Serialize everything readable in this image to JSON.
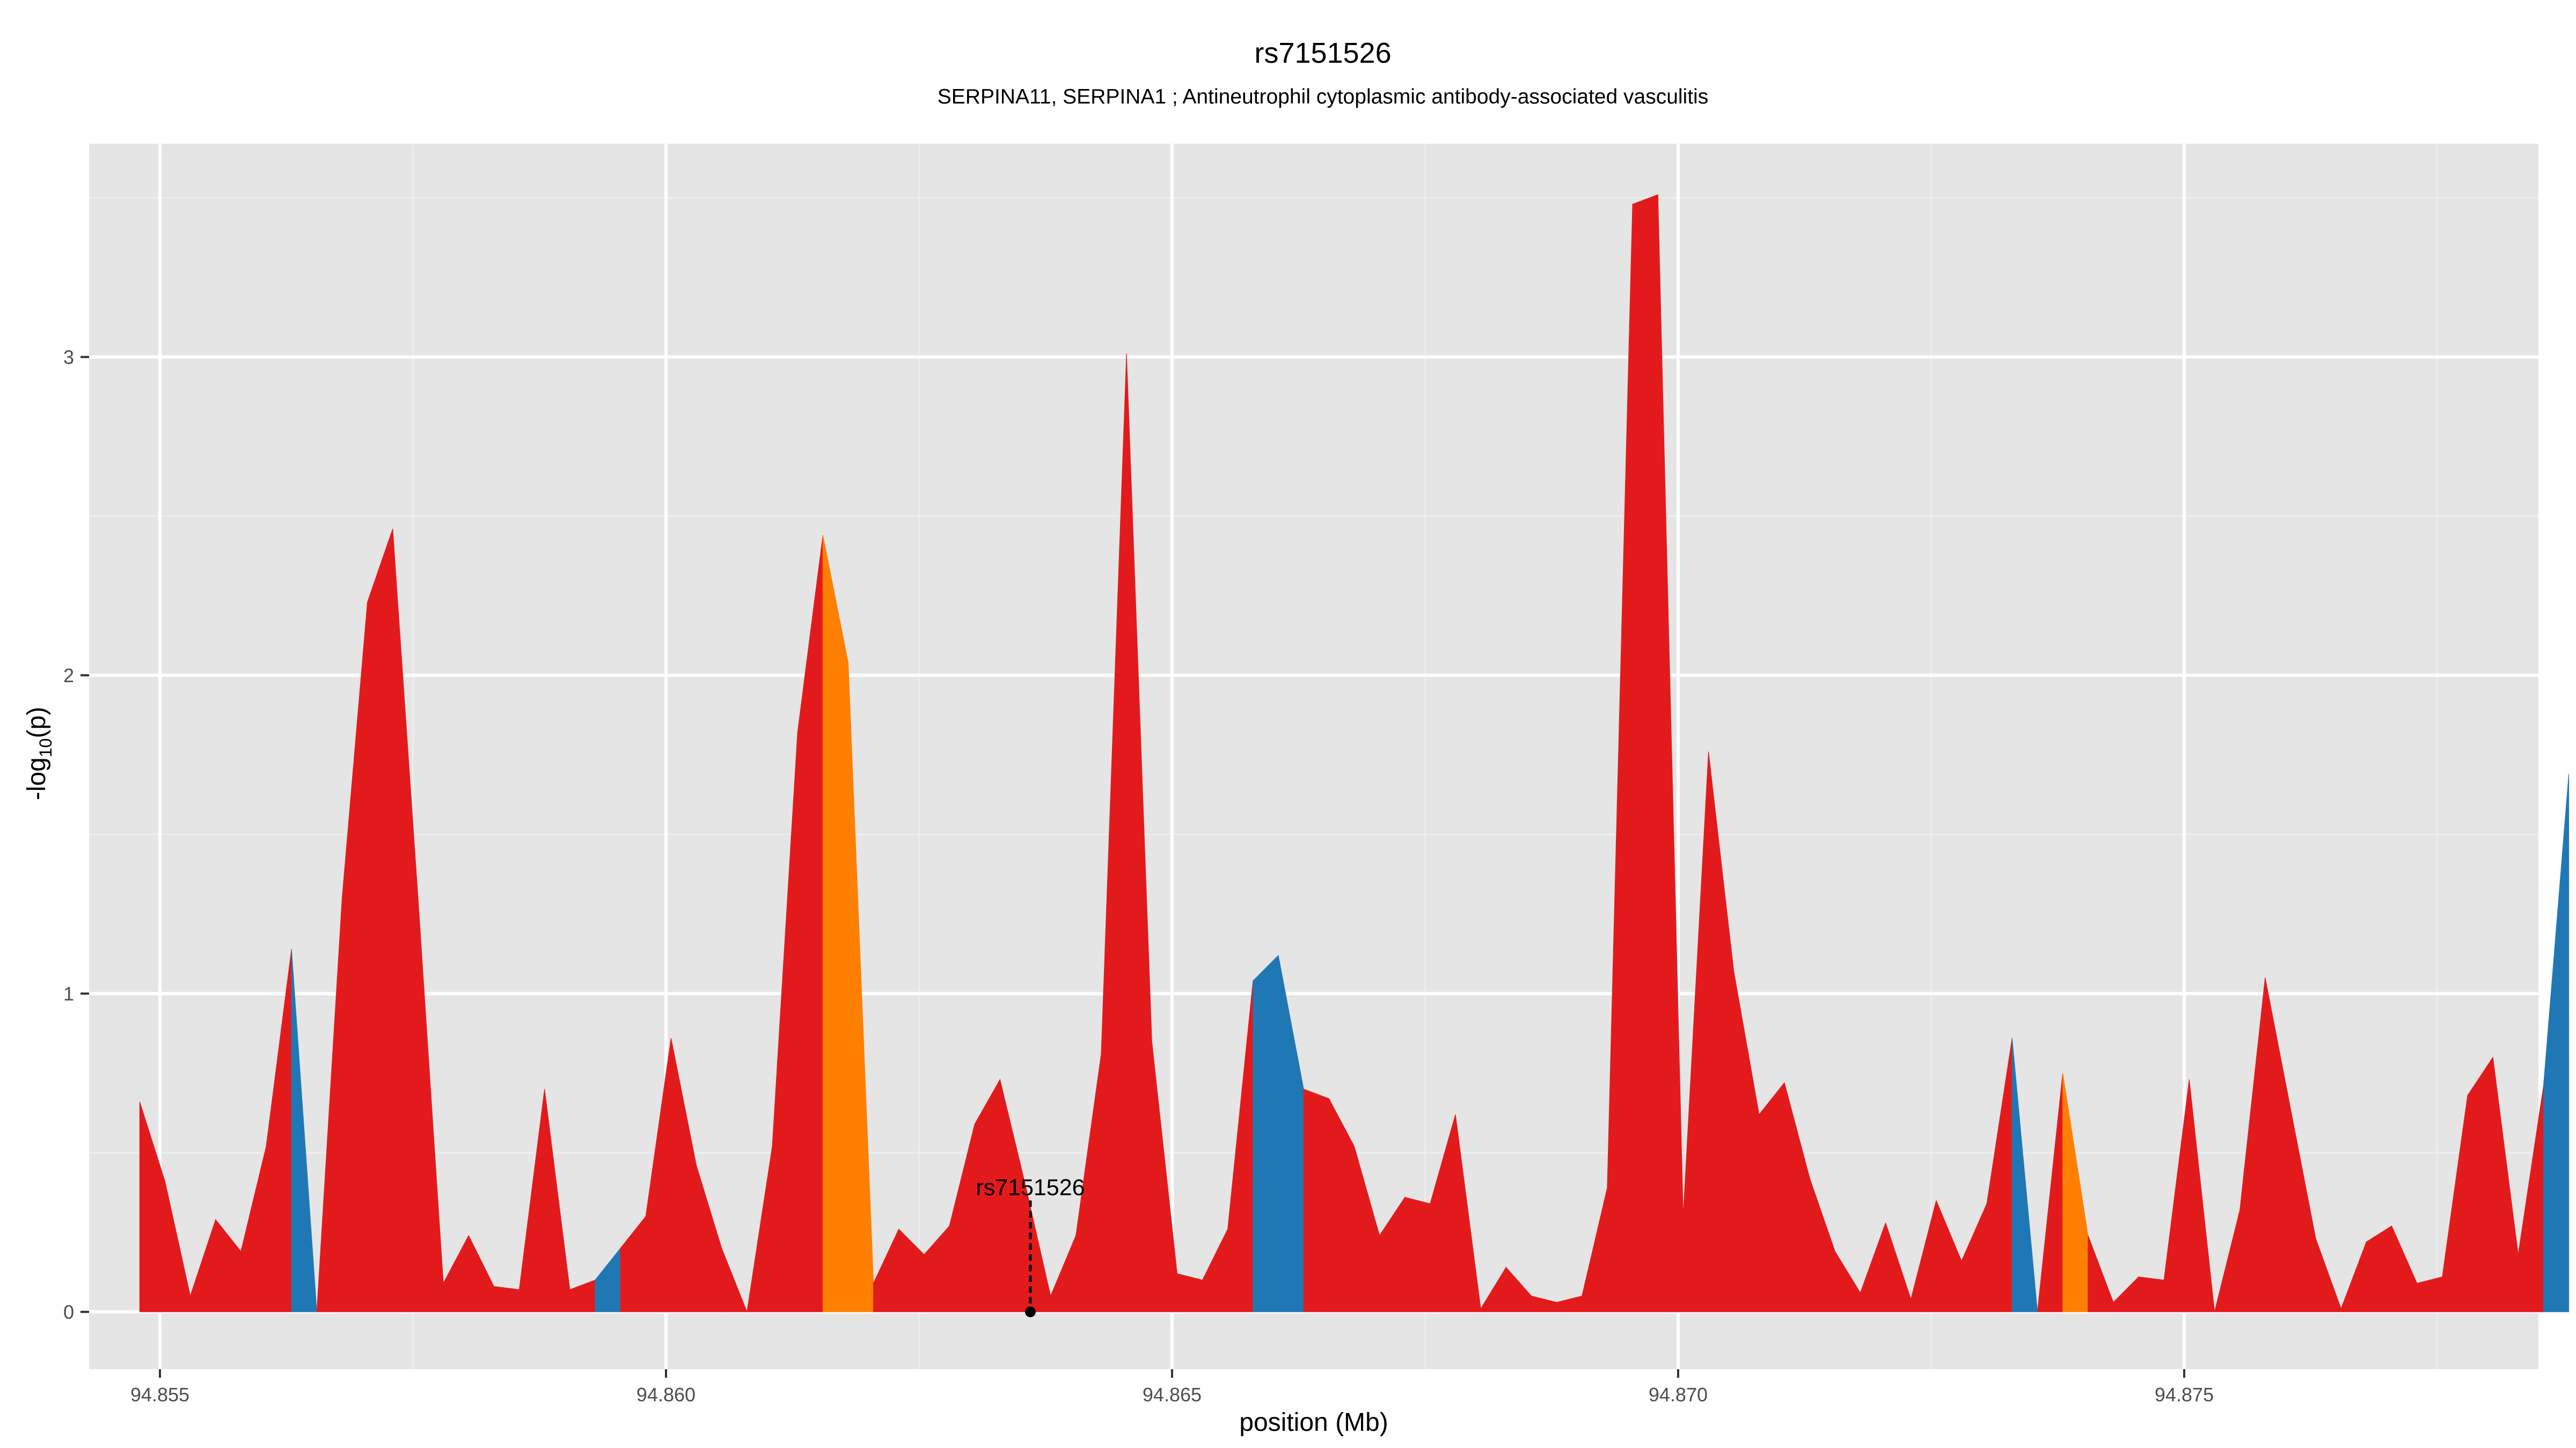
{
  "chart_data": {
    "type": "area",
    "title": "rs7151526",
    "subtitle": "SERPINA11, SERPINA1 ; Antineutrophil cytoplasmic antibody-associated vasculitis",
    "xlabel": "position (Mb)",
    "ylabel": "-log10(p)",
    "xlim": [
      94.8543,
      94.8785
    ],
    "ylim": [
      -0.18,
      3.67
    ],
    "x_ticks": [
      "94.855",
      "94.860",
      "94.865",
      "94.870",
      "94.875"
    ],
    "x_tick_values": [
      94.855,
      94.86,
      94.865,
      94.87,
      94.875
    ],
    "y_ticks": [
      "0",
      "1",
      "2",
      "3"
    ],
    "y_tick_values": [
      0,
      1,
      2,
      3
    ],
    "grid": true,
    "colors": {
      "red": "#e31a1c",
      "blue": "#1f78b4",
      "orange": "#ff7f00"
    },
    "points": [
      [
        94.8548,
        0.66,
        "red"
      ],
      [
        94.85505,
        0.41,
        "red"
      ],
      [
        94.8553,
        0.05,
        "red"
      ],
      [
        94.85555,
        0.29,
        "red"
      ],
      [
        94.8558,
        0.19,
        "red"
      ],
      [
        94.85605,
        0.52,
        "red"
      ],
      [
        94.8563,
        1.14,
        "blue"
      ],
      [
        94.85655,
        0.0,
        "red"
      ],
      [
        94.8568,
        1.3,
        "red"
      ],
      [
        94.85705,
        2.23,
        "red"
      ],
      [
        94.8573,
        2.46,
        "red"
      ],
      [
        94.85755,
        1.3,
        "red"
      ],
      [
        94.8578,
        0.09,
        "red"
      ],
      [
        94.85805,
        0.24,
        "red"
      ],
      [
        94.8583,
        0.08,
        "red"
      ],
      [
        94.85855,
        0.07,
        "red"
      ],
      [
        94.8588,
        0.7,
        "red"
      ],
      [
        94.85905,
        0.07,
        "red"
      ],
      [
        94.8593,
        0.1,
        "blue"
      ],
      [
        94.85955,
        0.2,
        "red"
      ],
      [
        94.8598,
        0.3,
        "red"
      ],
      [
        94.86005,
        0.86,
        "red"
      ],
      [
        94.8603,
        0.46,
        "red"
      ],
      [
        94.86055,
        0.2,
        "red"
      ],
      [
        94.8608,
        0.0,
        "red"
      ],
      [
        94.86105,
        0.52,
        "red"
      ],
      [
        94.8613,
        1.82,
        "red"
      ],
      [
        94.86155,
        2.44,
        "orange"
      ],
      [
        94.8618,
        2.04,
        "orange"
      ],
      [
        94.86205,
        0.09,
        "red"
      ],
      [
        94.8623,
        0.26,
        "red"
      ],
      [
        94.86255,
        0.18,
        "red"
      ],
      [
        94.8628,
        0.27,
        "red"
      ],
      [
        94.86305,
        0.59,
        "red"
      ],
      [
        94.8633,
        0.73,
        "red"
      ],
      [
        94.86355,
        0.4,
        "red"
      ],
      [
        94.8638,
        0.05,
        "red"
      ],
      [
        94.86405,
        0.24,
        "red"
      ],
      [
        94.8643,
        0.81,
        "red"
      ],
      [
        94.86455,
        3.01,
        "red"
      ],
      [
        94.8648,
        0.85,
        "red"
      ],
      [
        94.86505,
        0.12,
        "red"
      ],
      [
        94.8653,
        0.1,
        "red"
      ],
      [
        94.86555,
        0.26,
        "red"
      ],
      [
        94.8658,
        1.04,
        "blue"
      ],
      [
        94.86605,
        1.12,
        "blue"
      ],
      [
        94.8663,
        0.7,
        "red"
      ],
      [
        94.86655,
        0.67,
        "red"
      ],
      [
        94.8668,
        0.52,
        "red"
      ],
      [
        94.86705,
        0.24,
        "red"
      ],
      [
        94.8673,
        0.36,
        "red"
      ],
      [
        94.86755,
        0.34,
        "red"
      ],
      [
        94.8678,
        0.62,
        "red"
      ],
      [
        94.86805,
        0.01,
        "red"
      ],
      [
        94.8683,
        0.14,
        "red"
      ],
      [
        94.86855,
        0.05,
        "red"
      ],
      [
        94.8688,
        0.03,
        "red"
      ],
      [
        94.86905,
        0.05,
        "red"
      ],
      [
        94.8693,
        0.39,
        "red"
      ],
      [
        94.86955,
        3.48,
        "red"
      ],
      [
        94.8698,
        3.51,
        "red"
      ],
      [
        94.87005,
        0.3,
        "red"
      ],
      [
        94.8703,
        1.76,
        "red"
      ],
      [
        94.87055,
        1.07,
        "red"
      ],
      [
        94.8708,
        0.62,
        "red"
      ],
      [
        94.87105,
        0.72,
        "red"
      ],
      [
        94.8713,
        0.42,
        "red"
      ],
      [
        94.87155,
        0.19,
        "red"
      ],
      [
        94.8718,
        0.06,
        "red"
      ],
      [
        94.87205,
        0.28,
        "red"
      ],
      [
        94.8723,
        0.04,
        "red"
      ],
      [
        94.87255,
        0.35,
        "red"
      ],
      [
        94.8728,
        0.16,
        "red"
      ],
      [
        94.87305,
        0.34,
        "red"
      ],
      [
        94.8733,
        0.86,
        "blue"
      ],
      [
        94.87355,
        0.0,
        "red"
      ],
      [
        94.8738,
        0.75,
        "orange"
      ],
      [
        94.87405,
        0.24,
        "red"
      ],
      [
        94.8743,
        0.03,
        "red"
      ],
      [
        94.87455,
        0.11,
        "red"
      ],
      [
        94.8748,
        0.1,
        "red"
      ],
      [
        94.87505,
        0.73,
        "red"
      ],
      [
        94.8753,
        0.0,
        "red"
      ],
      [
        94.87555,
        0.32,
        "red"
      ],
      [
        94.8758,
        1.05,
        "red"
      ],
      [
        94.87605,
        0.64,
        "red"
      ],
      [
        94.8763,
        0.23,
        "red"
      ],
      [
        94.87655,
        0.01,
        "red"
      ],
      [
        94.8768,
        0.22,
        "red"
      ],
      [
        94.87705,
        0.27,
        "red"
      ],
      [
        94.8773,
        0.09,
        "red"
      ],
      [
        94.87755,
        0.11,
        "red"
      ],
      [
        94.8778,
        0.68,
        "red"
      ],
      [
        94.87805,
        0.8,
        "red"
      ],
      [
        94.8783,
        0.18,
        "red"
      ],
      [
        94.87855,
        0.71,
        "blue"
      ],
      [
        94.8788,
        1.69,
        "blue"
      ]
    ],
    "annotation": {
      "label": "rs7151526",
      "x": 94.8636,
      "y": 0.0
    }
  }
}
